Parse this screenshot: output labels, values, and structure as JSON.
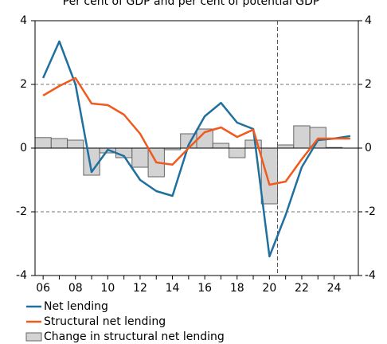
{
  "chart_data": {
    "type": "bar_line",
    "title": "Per cent of GDP and per cent of potential GDP",
    "categories": [
      "06",
      null,
      "08",
      null,
      "10",
      null,
      "12",
      null,
      "14",
      null,
      "16",
      null,
      "18",
      null,
      "20",
      null,
      "22",
      null,
      "24",
      null
    ],
    "series": [
      {
        "name": "Net lending",
        "type": "line",
        "color": "#1f6f9f",
        "values": [
          2.2,
          3.35,
          2.0,
          -0.75,
          -0.05,
          -0.25,
          -1.0,
          -1.35,
          -1.5,
          0.1,
          1.0,
          1.42,
          0.8,
          0.6,
          -3.4,
          -2.1,
          -0.6,
          0.25,
          0.3,
          0.38
        ]
      },
      {
        "name": "Structural net lending",
        "type": "line",
        "color": "#f05a1e",
        "values": [
          1.65,
          1.95,
          2.2,
          1.4,
          1.35,
          1.05,
          0.45,
          -0.45,
          -0.52,
          0.0,
          0.5,
          0.65,
          0.35,
          0.58,
          -1.15,
          -1.05,
          -0.35,
          0.3,
          0.3,
          0.3
        ]
      },
      {
        "name": "Change in structural net lending",
        "type": "bar",
        "color": "#d3d3d3",
        "values": [
          0.33,
          0.3,
          0.25,
          -0.85,
          -0.15,
          -0.3,
          -0.6,
          -0.9,
          -0.05,
          0.45,
          0.6,
          0.15,
          -0.3,
          0.25,
          -1.75,
          0.1,
          0.7,
          0.65,
          0.02,
          0.0
        ]
      }
    ],
    "ylim": [
      -4,
      4
    ],
    "yticks": [
      -4,
      -2,
      0,
      2,
      4
    ],
    "grid": true
  }
}
